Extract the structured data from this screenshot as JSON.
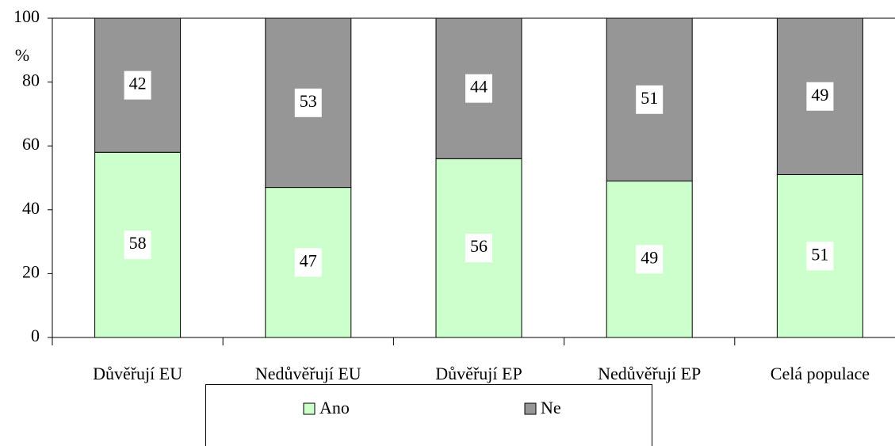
{
  "chart_data": {
    "type": "stacked_bar",
    "y_axis_label": "%",
    "categories": [
      "Důvěřují EU",
      "Nedůvěřují EU",
      "Důvěřují EP",
      "Nedůvěřují EP",
      "Celá populace"
    ],
    "series": [
      {
        "name": "Ano",
        "color": "#ccffcc",
        "values": [
          58,
          47,
          56,
          49,
          51
        ]
      },
      {
        "name": "Ne",
        "color": "#969696",
        "values": [
          42,
          53,
          44,
          51,
          49
        ]
      }
    ],
    "ylim": [
      0,
      100
    ],
    "yticks": [
      0,
      20,
      40,
      60,
      80,
      100
    ]
  }
}
